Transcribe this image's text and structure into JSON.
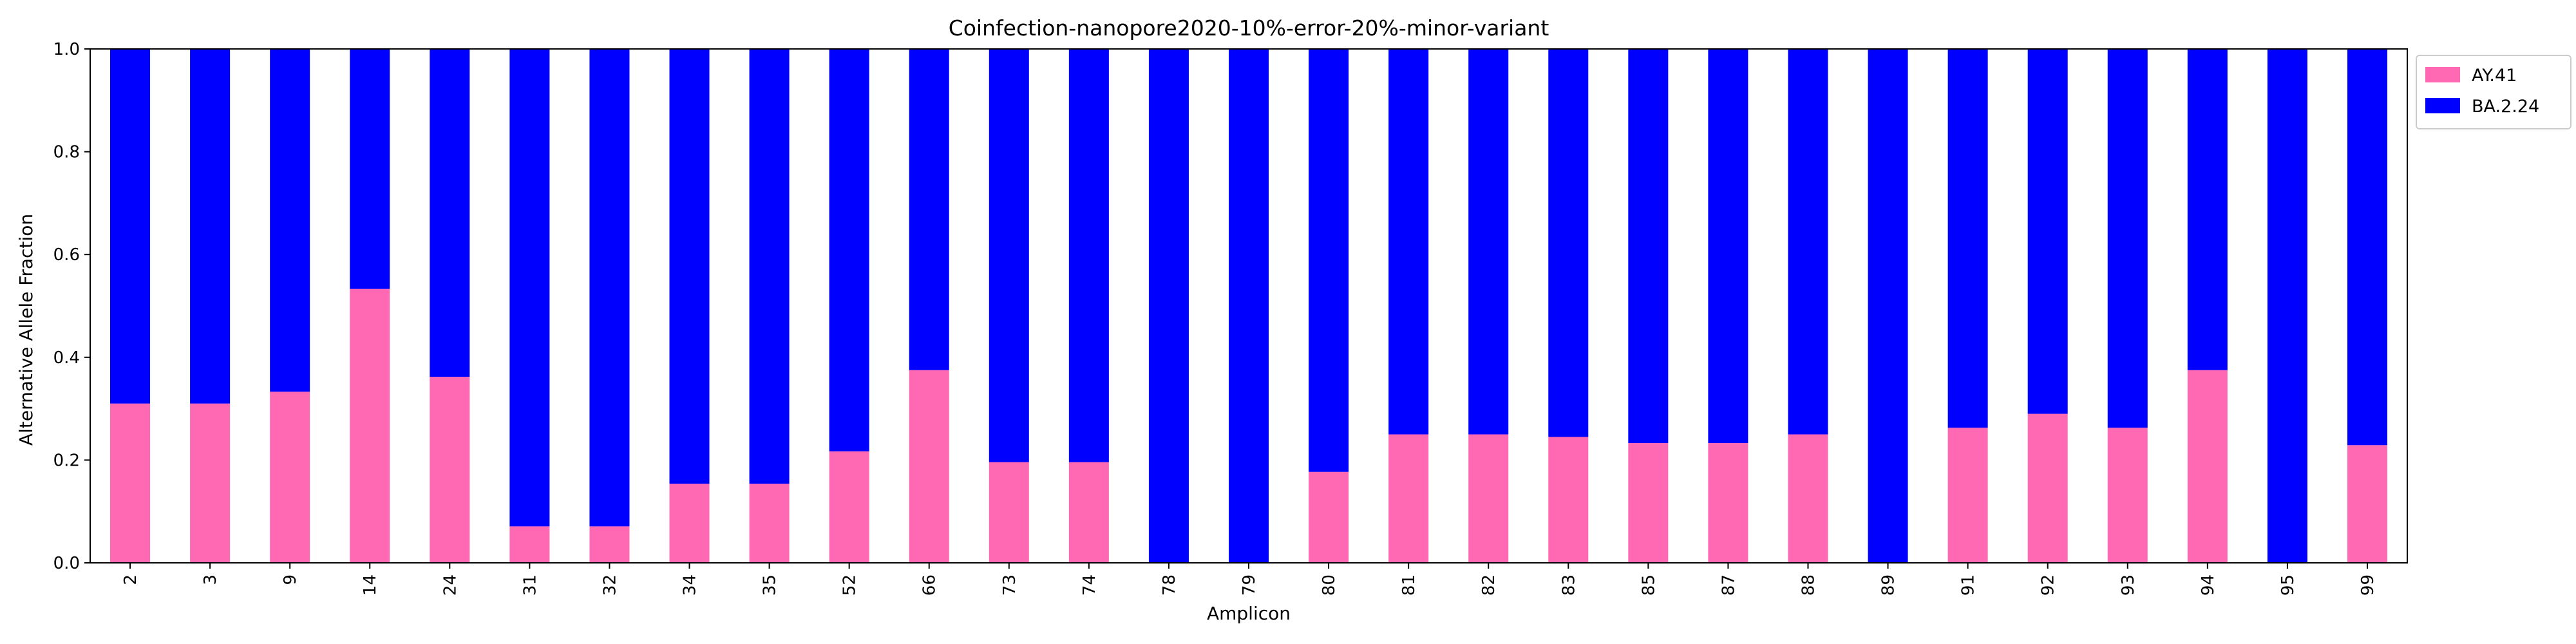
{
  "chart_data": {
    "type": "bar",
    "stacked": true,
    "title": "Coinfection-nanopore2020-10%-error-20%-minor-variant",
    "xlabel": "Amplicon",
    "ylabel": "Alternative Allele Fraction",
    "ylim": [
      0,
      1.0
    ],
    "yticks": [
      "0.0",
      "0.2",
      "0.4",
      "0.6",
      "0.8",
      "1.0"
    ],
    "legend_position": "outside-top-right",
    "grid": false,
    "categories": [
      "2",
      "3",
      "9",
      "14",
      "24",
      "31",
      "32",
      "34",
      "35",
      "52",
      "66",
      "73",
      "74",
      "78",
      "79",
      "80",
      "81",
      "82",
      "83",
      "85",
      "87",
      "88",
      "89",
      "91",
      "92",
      "93",
      "94",
      "95",
      "99"
    ],
    "series": [
      {
        "name": "AY.41",
        "color": "#ff69b4",
        "values": [
          0.31,
          0.31,
          0.333,
          0.533,
          0.362,
          0.071,
          0.071,
          0.154,
          0.154,
          0.217,
          0.375,
          0.196,
          0.196,
          0.0,
          0.0,
          0.177,
          0.25,
          0.25,
          0.245,
          0.233,
          0.233,
          0.25,
          0.0,
          0.263,
          0.29,
          0.263,
          0.375,
          0.0,
          0.229
        ]
      },
      {
        "name": "BA.2.24",
        "color": "#0000ff",
        "values": [
          0.69,
          0.69,
          0.667,
          0.467,
          0.638,
          0.929,
          0.929,
          0.846,
          0.846,
          0.783,
          0.625,
          0.804,
          0.804,
          1.0,
          1.0,
          0.823,
          0.75,
          0.75,
          0.755,
          0.767,
          0.767,
          0.75,
          1.0,
          0.737,
          0.71,
          0.737,
          0.625,
          1.0,
          0.771
        ]
      }
    ]
  }
}
